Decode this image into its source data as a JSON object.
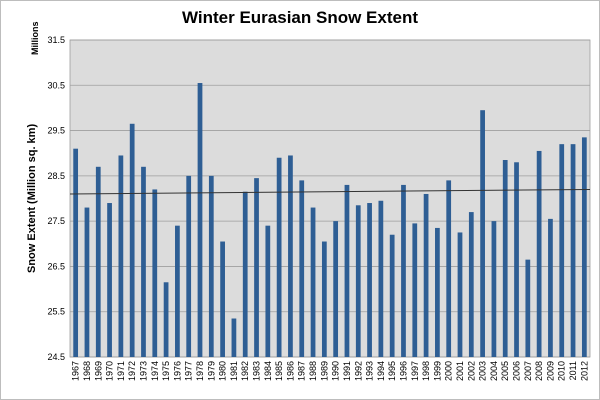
{
  "chart_data": {
    "type": "bar",
    "title": "Winter Eurasian Snow Extent",
    "ylabel": "Snow Extent (Million sq. km)",
    "units_label": "Millions",
    "xlabel": "",
    "ylim": [
      24.5,
      31.5
    ],
    "yticks": [
      "24.5",
      "25.5",
      "26.5",
      "27.5",
      "28.5",
      "29.5",
      "30.5",
      "31.5"
    ],
    "grid": true,
    "legend": "none",
    "colors": {
      "bar": "#2e5e94",
      "plot_background": "#dcdcdc",
      "gridline": "#9e9e9e",
      "trendline": "#333333"
    },
    "categories": [
      "1967",
      "1968",
      "1969",
      "1970",
      "1971",
      "1972",
      "1973",
      "1974",
      "1975",
      "1976",
      "1977",
      "1978",
      "1979",
      "1980",
      "1981",
      "1982",
      "1983",
      "1984",
      "1985",
      "1986",
      "1987",
      "1988",
      "1989",
      "1990",
      "1991",
      "1992",
      "1993",
      "1994",
      "1995",
      "1996",
      "1997",
      "1998",
      "1999",
      "2000",
      "2001",
      "2002",
      "2003",
      "2004",
      "2005",
      "2006",
      "2007",
      "2008",
      "2009",
      "2010",
      "2011",
      "2012"
    ],
    "values": [
      29.1,
      27.8,
      28.7,
      27.9,
      28.95,
      29.65,
      28.7,
      28.2,
      26.15,
      27.4,
      28.5,
      30.55,
      28.5,
      27.05,
      25.35,
      28.15,
      28.45,
      27.4,
      28.9,
      28.95,
      28.4,
      27.8,
      27.05,
      27.5,
      28.3,
      27.85,
      27.9,
      27.95,
      27.2,
      28.3,
      27.45,
      28.1,
      27.35,
      28.4,
      27.25,
      27.7,
      29.95,
      27.5,
      28.85,
      28.8,
      26.65,
      29.05,
      27.55,
      29.2,
      29.2,
      29.35
    ],
    "trendline": {
      "type": "linear",
      "start": 28.1,
      "end": 28.2
    }
  }
}
